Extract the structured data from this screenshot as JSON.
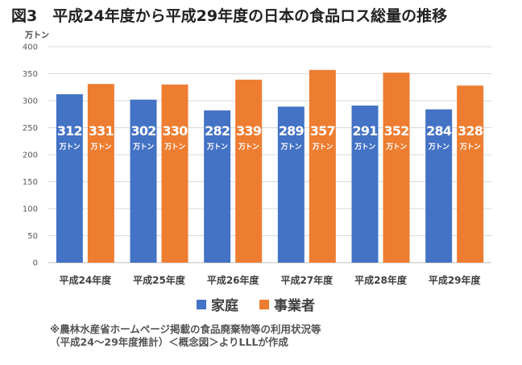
{
  "figure": {
    "title": "図3　平成24年度から平成29年度の日本の食品ロス総量の推移",
    "notes": [
      "※農林水産省ホームページ掲載の食品廃棄物等の利用状況等",
      "（平成24～29年度推計）＜概念図＞よりLLLが作成"
    ]
  },
  "chart_data": {
    "type": "bar",
    "title": "",
    "xlabel": "",
    "ylabel": "万トン",
    "ylim": [
      0,
      400
    ],
    "yticks": [
      0,
      50,
      100,
      150,
      200,
      250,
      300,
      350,
      400
    ],
    "grid": true,
    "legend_position": "bottom",
    "categories": [
      "平成24年度",
      "平成25年度",
      "平成26年度",
      "平成27年度",
      "平成28年度",
      "平成29年度"
    ],
    "data_label_unit": "万トン",
    "series": [
      {
        "name": "家庭",
        "color": "#4472C4",
        "values": [
          312,
          302,
          282,
          289,
          291,
          284
        ]
      },
      {
        "name": "事業者",
        "color": "#ED7D31",
        "values": [
          331,
          330,
          339,
          357,
          352,
          328
        ]
      }
    ]
  }
}
